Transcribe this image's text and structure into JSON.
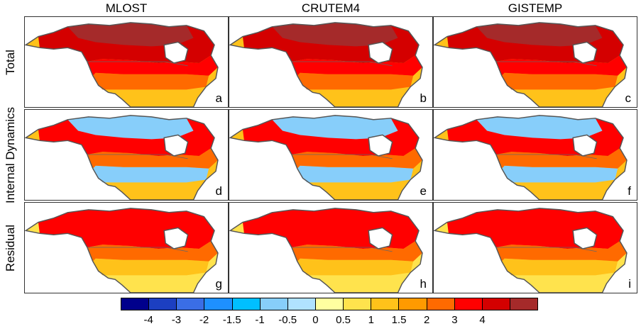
{
  "columns": [
    "MLOST",
    "CRUTEM4",
    "GISTEMP"
  ],
  "rows": [
    "Total",
    "Internal Dynamics",
    "Residual"
  ],
  "panel_labels": [
    "a",
    "b",
    "c",
    "d",
    "e",
    "f",
    "g",
    "h",
    "i"
  ],
  "colorbar": {
    "colors": [
      "#00008c",
      "#1c3fc1",
      "#3a6ee6",
      "#1e90ff",
      "#00bfff",
      "#87cefa",
      "#b0e2ff",
      "#ffffa0",
      "#ffe34d",
      "#ffc21a",
      "#ff9a00",
      "#ff6a00",
      "#ff0000",
      "#d40000",
      "#a52a2a"
    ],
    "tick_labels": [
      "-4",
      "-3",
      "-2",
      "-1.5",
      "-1",
      "-0.5",
      "0",
      "0.5",
      "1",
      "1.5",
      "2",
      "3",
      "4"
    ]
  },
  "panel_fields": {
    "total": {
      "arctic": "#a52a2a",
      "canada": "#d40000",
      "north": "#ff0000",
      "mid": "#ff6a00",
      "south": "#ffc21a"
    },
    "dynamics": {
      "arctic": "#87cefa",
      "canada": "#ff0000",
      "north": "#ff6a00",
      "mid": "#87cefa",
      "south": "#ffc21a"
    },
    "residual": {
      "arctic": "#ff0000",
      "canada": "#ff0000",
      "north": "#ff6a00",
      "mid": "#ffc21a",
      "south": "#ffe34d"
    }
  }
}
